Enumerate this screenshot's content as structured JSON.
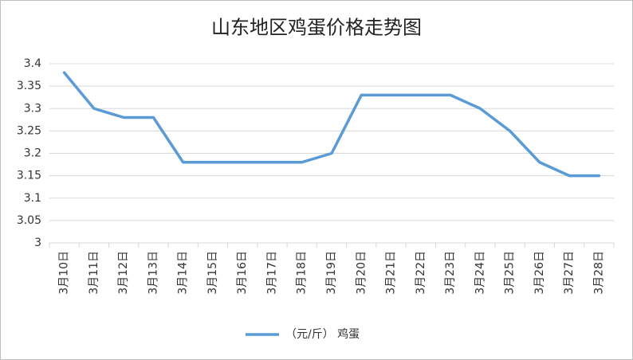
{
  "chart_data": {
    "type": "line",
    "title": "山东地区鸡蛋价格走势图",
    "categories": [
      "3月10日",
      "3月11日",
      "3月12日",
      "3月13日",
      "3月14日",
      "3月15日",
      "3月16日",
      "3月17日",
      "3月18日",
      "3月19日",
      "3月20日",
      "3月21日",
      "3月22日",
      "3月23日",
      "3月24日",
      "3月25日",
      "3月26日",
      "3月27日",
      "3月28日"
    ],
    "series": [
      {
        "name": "（元/斤） 鸡蛋",
        "color": "#5b9bd5",
        "values": [
          3.38,
          3.3,
          3.28,
          3.28,
          3.18,
          3.18,
          3.18,
          3.18,
          3.18,
          3.2,
          3.33,
          3.33,
          3.33,
          3.33,
          3.3,
          3.25,
          3.18,
          3.15,
          3.15
        ]
      }
    ],
    "ylim": [
      3,
      3.4
    ],
    "yticks": [
      3,
      3.05,
      3.1,
      3.15,
      3.2,
      3.25,
      3.3,
      3.35,
      3.4
    ],
    "grid": true,
    "legend": "bottom"
  }
}
